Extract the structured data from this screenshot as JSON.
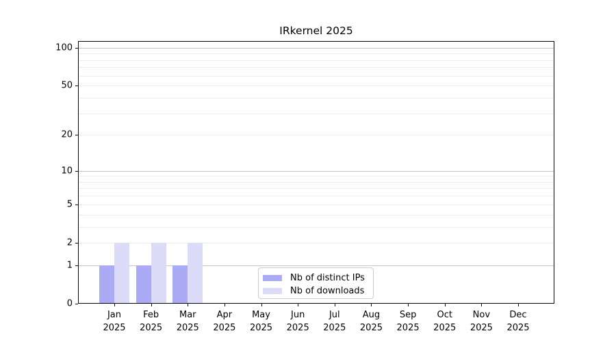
{
  "chart_data": {
    "type": "bar",
    "title": "IRkernel 2025",
    "x_tick_labels_line1": [
      "Jan",
      "Feb",
      "Mar",
      "Apr",
      "May",
      "Jun",
      "Jul",
      "Aug",
      "Sep",
      "Oct",
      "Nov",
      "Dec"
    ],
    "x_tick_labels_line2": "2025",
    "series": [
      {
        "name": "Nb of distinct IPs",
        "color": "#aaaaf5",
        "values": [
          1,
          1,
          1,
          0,
          0,
          0,
          0,
          0,
          0,
          0,
          0,
          0
        ]
      },
      {
        "name": "Nb of downloads",
        "color": "#dcdcf8",
        "values": [
          2,
          2,
          2,
          0,
          0,
          0,
          0,
          0,
          0,
          0,
          0,
          0
        ]
      }
    ],
    "y_scale": "log1p",
    "ylim": [
      0,
      113
    ],
    "y_ticks": [
      0,
      1,
      2,
      5,
      10,
      20,
      50,
      100
    ],
    "y_gridlines_major": [
      1,
      10,
      100
    ],
    "y_gridlines_minor": [
      2,
      3,
      4,
      5,
      6,
      7,
      8,
      9,
      20,
      30,
      40,
      50,
      60,
      70,
      80,
      90
    ],
    "grid": "on",
    "legend_position": "lower center",
    "colors": {
      "grid_major": "#c3c3c3",
      "grid_minor": "#ececec",
      "spine": "#000000",
      "text": "#000000",
      "legend_border": "#cccccc",
      "background": "#ffffff"
    }
  }
}
